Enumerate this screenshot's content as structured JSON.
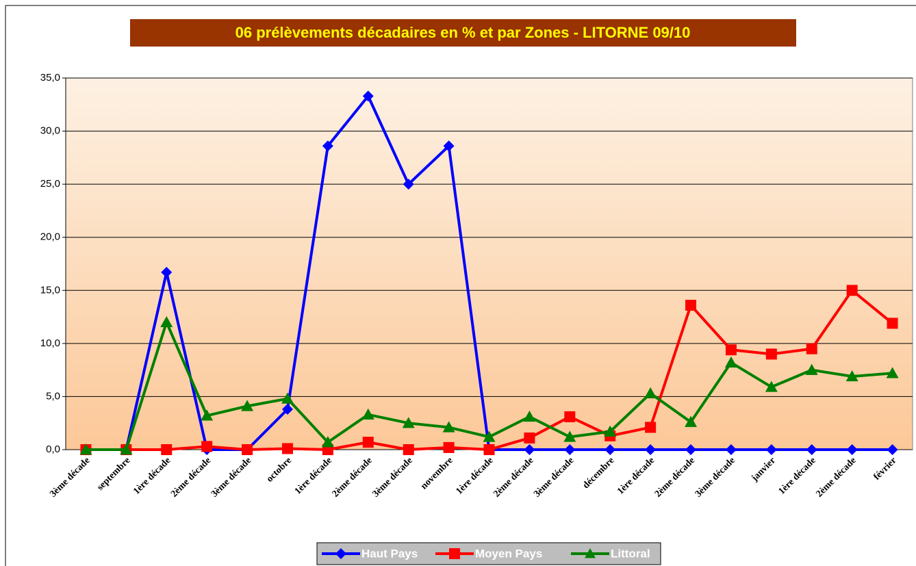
{
  "chart_data": {
    "type": "line",
    "title": "06 prélèvements décadaires en % et par Zones - LITORNE 09/10",
    "categories": [
      "3ème décade",
      "septembre",
      "1ère décade",
      "2ème décade",
      "3ème décade",
      "octobre",
      "1ère décade",
      "2ème décade",
      "3ème décade",
      "novembre",
      "1ère décade",
      "2ème décade",
      "3ème décade",
      "décembre",
      "1ère décade",
      "2ème décade",
      "3ème décade",
      "janvier",
      "1ère décade",
      "2ème décade",
      "février"
    ],
    "series": [
      {
        "name": "Haut Pays",
        "color": "#0000ff",
        "marker": "diamond",
        "values": [
          0,
          0,
          16.7,
          0,
          0,
          3.8,
          28.6,
          33.3,
          25.0,
          28.6,
          0,
          0,
          0,
          0,
          0,
          0,
          0,
          0,
          0,
          0,
          0
        ]
      },
      {
        "name": "Moyen Pays",
        "color": "#ff0000",
        "marker": "square",
        "values": [
          0,
          0,
          0,
          0.3,
          0,
          0.1,
          0,
          0.7,
          0,
          0.2,
          0,
          1.1,
          3.1,
          1.3,
          2.1,
          13.6,
          9.4,
          9.0,
          9.5,
          15.0,
          11.9
        ]
      },
      {
        "name": "Littoral",
        "color": "#008000",
        "marker": "triangle",
        "values": [
          0,
          0,
          12.0,
          3.2,
          4.1,
          4.8,
          0.7,
          3.3,
          2.5,
          2.1,
          1.2,
          3.1,
          1.2,
          1.7,
          5.3,
          2.6,
          8.2,
          5.9,
          7.5,
          6.9,
          7.2
        ]
      }
    ],
    "ylim": [
      0,
      35
    ],
    "yticks": [
      {
        "value": 0,
        "label": "0,0"
      },
      {
        "value": 5,
        "label": "5,0"
      },
      {
        "value": 10,
        "label": "10,0"
      },
      {
        "value": 15,
        "label": "15,0"
      },
      {
        "value": 20,
        "label": "20,0"
      },
      {
        "value": 25,
        "label": "25,0"
      },
      {
        "value": 30,
        "label": "30,0"
      },
      {
        "value": 35,
        "label": "35,0"
      }
    ],
    "grid": true,
    "legend": "bottom"
  }
}
